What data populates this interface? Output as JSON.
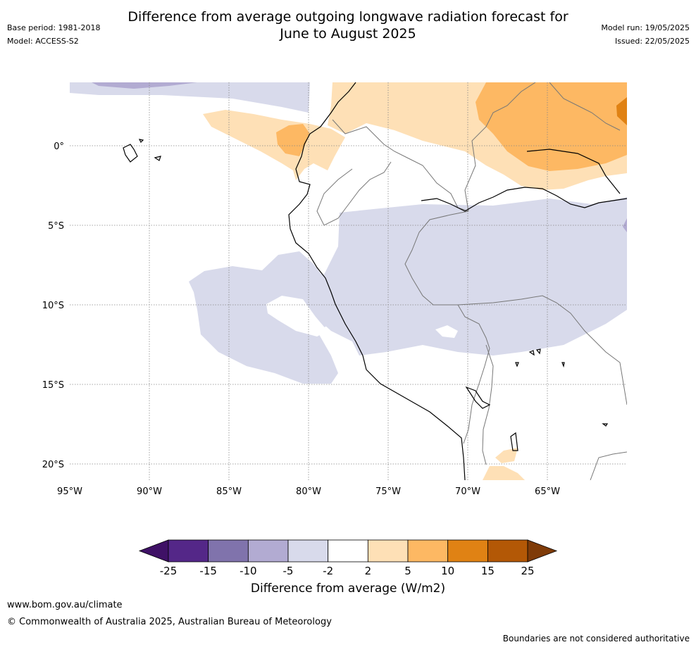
{
  "header": {
    "title_line1": "Difference from average outgoing longwave radiation forecast for",
    "title_line2": "June to August 2025",
    "base_period": "Base period: 1981-2018",
    "model": "Model: ACCESS-S2",
    "model_run": "Model run: 19/05/2025",
    "issued": "Issued: 22/05/2025"
  },
  "map": {
    "lat_labels": [
      "0°",
      "5°S",
      "10°S",
      "15°S",
      "20°S"
    ],
    "lon_labels": [
      "95°W",
      "90°W",
      "85°W",
      "80°W",
      "75°W",
      "70°W",
      "65°W"
    ],
    "extent": {
      "lon": [
        -95,
        -60
      ],
      "lat": [
        -21,
        4
      ]
    },
    "grid": true
  },
  "colorbar": {
    "ticks": [
      "-25",
      "-15",
      "-10",
      "-5",
      "-2",
      "2",
      "5",
      "10",
      "15",
      "25"
    ],
    "colors": [
      "#3f1166",
      "#542788",
      "#8073ac",
      "#b2abd2",
      "#d8daeb",
      "#ffffff",
      "#fee0b6",
      "#fdb863",
      "#e08214",
      "#b35806",
      "#7f3b08"
    ],
    "label": "Difference from average (W/m2)",
    "extend": "both"
  },
  "footer": {
    "url": "www.bom.gov.au/climate",
    "copyright": "© Commonwealth of Australia 2025, Australian Bureau of Meteorology",
    "disclaimer": "Boundaries are not considered authoritative"
  }
}
